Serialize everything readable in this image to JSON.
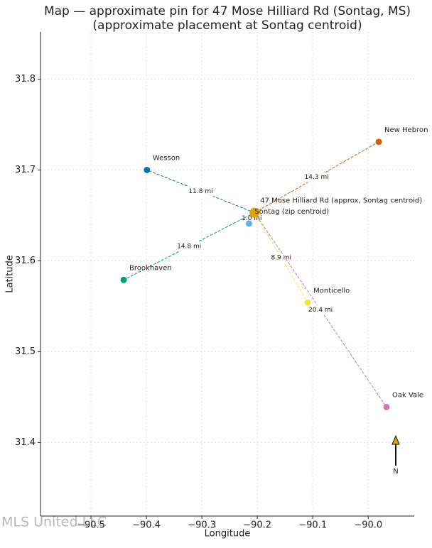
{
  "chart_data": {
    "type": "scatter",
    "title": [
      "Map — approximate pin for 47 Mose Hilliard Rd (Sontag, MS)",
      "(approximate placement at Sontag centroid)"
    ],
    "xlabel": "Longitude",
    "ylabel": "Latitude",
    "xlim": [
      -90.591,
      -89.917
    ],
    "ylim": [
      31.319,
      31.852
    ],
    "xticks": [
      {
        "value": -90.5,
        "label": "−90.5"
      },
      {
        "value": -90.4,
        "label": "−90.4"
      },
      {
        "value": -90.3,
        "label": "−90.3"
      },
      {
        "value": -90.2,
        "label": "−90.2"
      },
      {
        "value": -90.1,
        "label": "−90.1"
      },
      {
        "value": -90.0,
        "label": "−90.0"
      }
    ],
    "yticks": [
      31.4,
      31.5,
      31.6,
      31.7,
      31.8
    ],
    "grid": true,
    "labels": [
      "47 Mose Hilliard Rd (approx, Sontag centroid)",
      "Sontag (zip centroid)",
      "Wesson",
      "New Hebron",
      "Brookhaven",
      "Monticello",
      "Oak Vale"
    ],
    "x": [
      -90.205,
      -90.215,
      -90.399,
      -89.981,
      -90.441,
      -90.109,
      -89.967
    ],
    "y": [
      31.653,
      31.641,
      31.7,
      31.731,
      31.579,
      31.554,
      31.439
    ],
    "colors": [
      "#e69f00",
      "#56b4e9",
      "#0072b2",
      "#d55e00",
      "#009e73",
      "#f0e442",
      "#cc79a7"
    ],
    "distance_labels": [
      null,
      "1.0 mi",
      "11.8 mi",
      "14.3 mi",
      "14.8 mi",
      "8.9 mi",
      "20.4 mi"
    ],
    "north_label": "N",
    "watermark": "MLS United LLC"
  }
}
